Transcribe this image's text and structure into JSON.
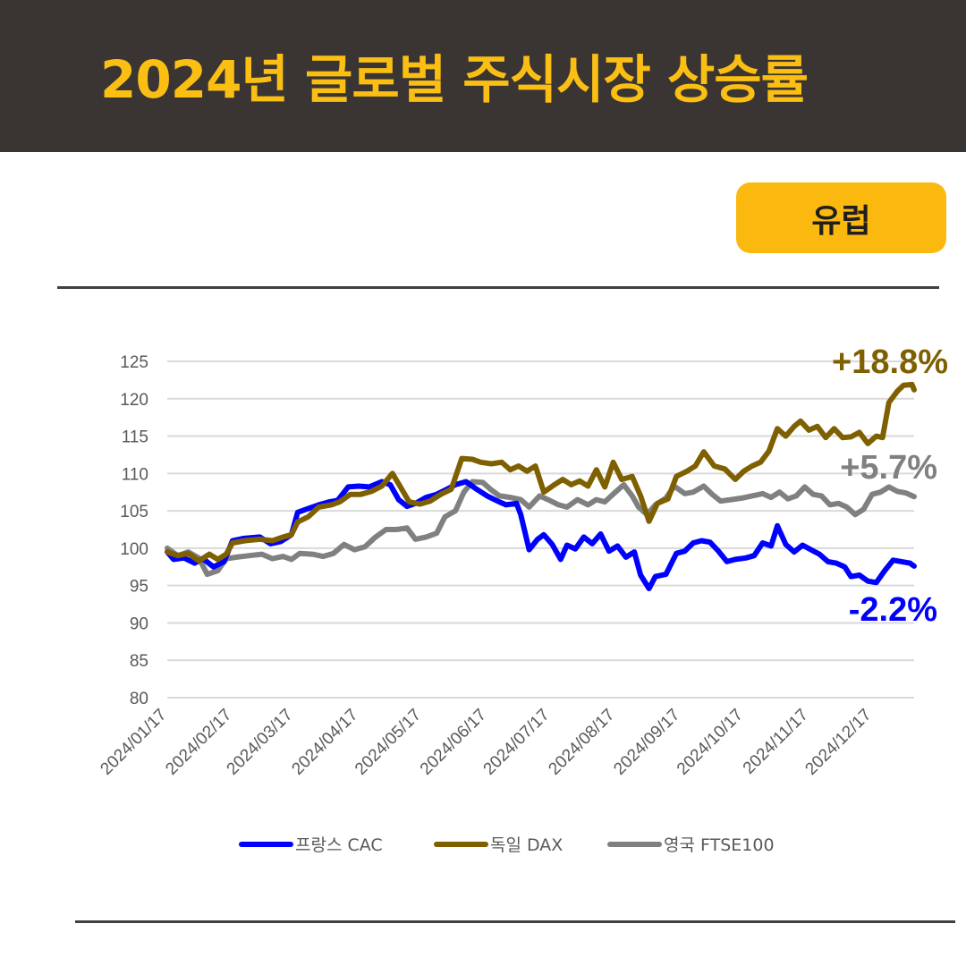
{
  "header": {
    "title": "2024년 글로벌 주식시장 상승률"
  },
  "badge": {
    "region": "유럽"
  },
  "chart_data": {
    "type": "line",
    "title": "2024년 글로벌 주식시장 상승률",
    "ylim": [
      80,
      125
    ],
    "yticks": [
      125,
      120,
      115,
      110,
      105,
      100,
      95,
      90,
      85,
      80
    ],
    "xticks": [
      "2024/01/17",
      "2024/02/17",
      "2024/03/17",
      "2024/04/17",
      "2024/05/17",
      "2024/06/17",
      "2024/07/17",
      "2024/08/17",
      "2024/09/17",
      "2024/10/17",
      "2024/11/17",
      "2024/12/17"
    ],
    "grid": true,
    "legend_position": "bottom",
    "series": [
      {
        "name": "프랑스 CAC",
        "color": "#0000ff",
        "end_label": "-2.2%",
        "points": [
          [
            "2024-01-17",
            99.5
          ],
          [
            "2024-01-20",
            98.5
          ],
          [
            "2024-01-25",
            98.7
          ],
          [
            "2024-01-30",
            98.0
          ],
          [
            "2024-02-03",
            98.6
          ],
          [
            "2024-02-08",
            97.5
          ],
          [
            "2024-02-13",
            98.2
          ],
          [
            "2024-02-17",
            101.0
          ],
          [
            "2024-02-22",
            101.3
          ],
          [
            "2024-03-01",
            101.5
          ],
          [
            "2024-03-06",
            100.6
          ],
          [
            "2024-03-11",
            100.9
          ],
          [
            "2024-03-16",
            101.8
          ],
          [
            "2024-03-19",
            104.8
          ],
          [
            "2024-03-24",
            105.3
          ],
          [
            "2024-03-29",
            105.8
          ],
          [
            "2024-04-03",
            106.2
          ],
          [
            "2024-04-07",
            106.4
          ],
          [
            "2024-04-12",
            108.2
          ],
          [
            "2024-04-17",
            108.3
          ],
          [
            "2024-04-22",
            108.2
          ],
          [
            "2024-04-28",
            108.9
          ],
          [
            "2024-05-02",
            108.5
          ],
          [
            "2024-05-06",
            106.5
          ],
          [
            "2024-05-10",
            105.6
          ],
          [
            "2024-05-14",
            106.0
          ],
          [
            "2024-05-19",
            106.8
          ],
          [
            "2024-05-24",
            107.2
          ],
          [
            "2024-05-29",
            107.9
          ],
          [
            "2024-06-02",
            108.5
          ],
          [
            "2024-06-07",
            108.9
          ],
          [
            "2024-06-12",
            107.9
          ],
          [
            "2024-06-17",
            107.0
          ],
          [
            "2024-06-22",
            106.3
          ],
          [
            "2024-06-26",
            105.8
          ],
          [
            "2024-07-01",
            106.0
          ],
          [
            "2024-07-03",
            104.5
          ],
          [
            "2024-07-07",
            99.8
          ],
          [
            "2024-07-11",
            101.2
          ],
          [
            "2024-07-14",
            101.8
          ],
          [
            "2024-07-18",
            100.5
          ],
          [
            "2024-07-22",
            98.5
          ],
          [
            "2024-07-25",
            100.4
          ],
          [
            "2024-07-29",
            99.9
          ],
          [
            "2024-08-02",
            101.5
          ],
          [
            "2024-08-06",
            100.6
          ],
          [
            "2024-08-10",
            101.9
          ],
          [
            "2024-08-14",
            99.6
          ],
          [
            "2024-08-18",
            100.3
          ],
          [
            "2024-08-22",
            98.8
          ],
          [
            "2024-08-26",
            99.5
          ],
          [
            "2024-08-29",
            96.4
          ],
          [
            "2024-09-02",
            94.6
          ],
          [
            "2024-09-05",
            96.2
          ],
          [
            "2024-09-10",
            96.5
          ],
          [
            "2024-09-15",
            99.3
          ],
          [
            "2024-09-19",
            99.6
          ],
          [
            "2024-09-23",
            100.7
          ],
          [
            "2024-09-27",
            101.0
          ],
          [
            "2024-10-01",
            100.8
          ],
          [
            "2024-10-05",
            99.6
          ],
          [
            "2024-10-09",
            98.2
          ],
          [
            "2024-10-13",
            98.5
          ],
          [
            "2024-10-18",
            98.7
          ],
          [
            "2024-10-22",
            99.0
          ],
          [
            "2024-10-26",
            100.7
          ],
          [
            "2024-10-30",
            100.3
          ],
          [
            "2024-11-02",
            103.0
          ],
          [
            "2024-11-06",
            100.5
          ],
          [
            "2024-11-10",
            99.5
          ],
          [
            "2024-11-14",
            100.4
          ],
          [
            "2024-11-18",
            99.8
          ],
          [
            "2024-11-22",
            99.2
          ],
          [
            "2024-11-26",
            98.2
          ],
          [
            "2024-11-30",
            98.0
          ],
          [
            "2024-12-04",
            97.5
          ],
          [
            "2024-12-07",
            96.2
          ],
          [
            "2024-12-11",
            96.4
          ],
          [
            "2024-12-15",
            95.6
          ],
          [
            "2024-12-19",
            95.4
          ],
          [
            "2024-12-23",
            97.0
          ],
          [
            "2024-12-27",
            98.4
          ],
          [
            "2024-12-31",
            98.2
          ],
          [
            "2025-01-04",
            98.0
          ],
          [
            "2025-01-06",
            97.6
          ]
        ]
      },
      {
        "name": "독일 DAX",
        "color": "#7f6000",
        "end_label": "+18.8%",
        "points": [
          [
            "2024-01-17",
            99.5
          ],
          [
            "2024-01-22",
            99.0
          ],
          [
            "2024-01-27",
            99.3
          ],
          [
            "2024-02-01",
            98.3
          ],
          [
            "2024-02-06",
            99.2
          ],
          [
            "2024-02-10",
            98.5
          ],
          [
            "2024-02-14",
            99.2
          ],
          [
            "2024-02-17",
            100.7
          ],
          [
            "2024-02-23",
            101.0
          ],
          [
            "2024-03-01",
            101.2
          ],
          [
            "2024-03-07",
            101.0
          ],
          [
            "2024-03-12",
            101.5
          ],
          [
            "2024-03-16",
            101.8
          ],
          [
            "2024-03-19",
            103.5
          ],
          [
            "2024-03-24",
            104.2
          ],
          [
            "2024-03-29",
            105.5
          ],
          [
            "2024-04-04",
            105.8
          ],
          [
            "2024-04-08",
            106.2
          ],
          [
            "2024-04-13",
            107.2
          ],
          [
            "2024-04-18",
            107.2
          ],
          [
            "2024-04-23",
            107.6
          ],
          [
            "2024-04-28",
            108.3
          ],
          [
            "2024-05-03",
            110.0
          ],
          [
            "2024-05-06",
            108.6
          ],
          [
            "2024-05-11",
            106.2
          ],
          [
            "2024-05-16",
            105.9
          ],
          [
            "2024-05-21",
            106.3
          ],
          [
            "2024-05-26",
            107.2
          ],
          [
            "2024-05-31",
            107.9
          ],
          [
            "2024-06-05",
            112.0
          ],
          [
            "2024-06-10",
            111.9
          ],
          [
            "2024-06-14",
            111.5
          ],
          [
            "2024-06-19",
            111.3
          ],
          [
            "2024-06-24",
            111.5
          ],
          [
            "2024-06-28",
            110.5
          ],
          [
            "2024-07-02",
            111.0
          ],
          [
            "2024-07-06",
            110.3
          ],
          [
            "2024-07-10",
            111.0
          ],
          [
            "2024-07-14",
            107.5
          ],
          [
            "2024-07-19",
            108.5
          ],
          [
            "2024-07-23",
            109.2
          ],
          [
            "2024-07-27",
            108.5
          ],
          [
            "2024-07-31",
            109.0
          ],
          [
            "2024-08-04",
            108.3
          ],
          [
            "2024-08-08",
            110.5
          ],
          [
            "2024-08-12",
            108.2
          ],
          [
            "2024-08-16",
            111.5
          ],
          [
            "2024-08-20",
            109.2
          ],
          [
            "2024-08-25",
            109.6
          ],
          [
            "2024-08-29",
            107.0
          ],
          [
            "2024-09-02",
            103.6
          ],
          [
            "2024-09-06",
            106.0
          ],
          [
            "2024-09-11",
            106.6
          ],
          [
            "2024-09-15",
            109.6
          ],
          [
            "2024-09-20",
            110.3
          ],
          [
            "2024-09-24",
            111.0
          ],
          [
            "2024-09-28",
            112.9
          ],
          [
            "2024-10-03",
            111.0
          ],
          [
            "2024-10-08",
            110.6
          ],
          [
            "2024-10-13",
            109.2
          ],
          [
            "2024-10-17",
            110.3
          ],
          [
            "2024-10-21",
            111.0
          ],
          [
            "2024-10-25",
            111.5
          ],
          [
            "2024-10-29",
            113.0
          ],
          [
            "2024-11-02",
            116.0
          ],
          [
            "2024-11-06",
            115.0
          ],
          [
            "2024-11-10",
            116.3
          ],
          [
            "2024-11-13",
            117.0
          ],
          [
            "2024-11-17",
            115.8
          ],
          [
            "2024-11-21",
            116.3
          ],
          [
            "2024-11-25",
            114.8
          ],
          [
            "2024-11-29",
            116.0
          ],
          [
            "2024-12-03",
            114.8
          ],
          [
            "2024-12-07",
            114.9
          ],
          [
            "2024-12-11",
            115.5
          ],
          [
            "2024-12-15",
            114.0
          ],
          [
            "2024-12-19",
            115.0
          ],
          [
            "2024-12-22",
            114.8
          ],
          [
            "2024-12-25",
            119.5
          ],
          [
            "2024-12-29",
            121.0
          ],
          [
            "2025-01-01",
            121.8
          ],
          [
            "2025-01-05",
            121.9
          ],
          [
            "2025-01-06",
            121.2
          ]
        ]
      },
      {
        "name": "영국 FTSE100",
        "color": "#808080",
        "end_label": "+5.7%",
        "points": [
          [
            "2024-01-17",
            100.0
          ],
          [
            "2024-01-22",
            99.0
          ],
          [
            "2024-01-27",
            99.5
          ],
          [
            "2024-02-01",
            98.7
          ],
          [
            "2024-02-05",
            96.5
          ],
          [
            "2024-02-10",
            97.0
          ],
          [
            "2024-02-14",
            98.6
          ],
          [
            "2024-02-19",
            98.8
          ],
          [
            "2024-02-25",
            99.0
          ],
          [
            "2024-03-02",
            99.2
          ],
          [
            "2024-03-07",
            98.6
          ],
          [
            "2024-03-12",
            98.9
          ],
          [
            "2024-03-16",
            98.5
          ],
          [
            "2024-03-20",
            99.3
          ],
          [
            "2024-03-26",
            99.2
          ],
          [
            "2024-03-31",
            98.9
          ],
          [
            "2024-04-05",
            99.3
          ],
          [
            "2024-04-10",
            100.5
          ],
          [
            "2024-04-15",
            99.8
          ],
          [
            "2024-04-20",
            100.2
          ],
          [
            "2024-04-25",
            101.5
          ],
          [
            "2024-04-30",
            102.5
          ],
          [
            "2024-05-05",
            102.5
          ],
          [
            "2024-05-10",
            102.7
          ],
          [
            "2024-05-14",
            101.2
          ],
          [
            "2024-05-19",
            101.5
          ],
          [
            "2024-05-24",
            102.0
          ],
          [
            "2024-05-28",
            104.2
          ],
          [
            "2024-06-02",
            105.0
          ],
          [
            "2024-06-06",
            107.5
          ],
          [
            "2024-06-10",
            108.9
          ],
          [
            "2024-06-15",
            108.8
          ],
          [
            "2024-06-19",
            107.8
          ],
          [
            "2024-06-23",
            107.0
          ],
          [
            "2024-06-28",
            106.8
          ],
          [
            "2024-07-03",
            106.5
          ],
          [
            "2024-07-07",
            105.5
          ],
          [
            "2024-07-12",
            107.0
          ],
          [
            "2024-07-16",
            106.5
          ],
          [
            "2024-07-21",
            105.8
          ],
          [
            "2024-07-25",
            105.5
          ],
          [
            "2024-07-30",
            106.5
          ],
          [
            "2024-08-04",
            105.8
          ],
          [
            "2024-08-08",
            106.5
          ],
          [
            "2024-08-12",
            106.2
          ],
          [
            "2024-08-17",
            107.5
          ],
          [
            "2024-08-21",
            108.5
          ],
          [
            "2024-08-25",
            107.0
          ],
          [
            "2024-08-28",
            105.5
          ],
          [
            "2024-09-01",
            104.5
          ],
          [
            "2024-09-05",
            105.8
          ],
          [
            "2024-09-10",
            106.7
          ],
          [
            "2024-09-14",
            108.3
          ],
          [
            "2024-09-19",
            107.3
          ],
          [
            "2024-09-23",
            107.5
          ],
          [
            "2024-09-28",
            108.3
          ],
          [
            "2024-10-02",
            107.2
          ],
          [
            "2024-10-06",
            106.3
          ],
          [
            "2024-10-11",
            106.5
          ],
          [
            "2024-10-16",
            106.7
          ],
          [
            "2024-10-21",
            107.0
          ],
          [
            "2024-10-26",
            107.3
          ],
          [
            "2024-10-30",
            106.8
          ],
          [
            "2024-11-03",
            107.5
          ],
          [
            "2024-11-07",
            106.6
          ],
          [
            "2024-11-11",
            107.0
          ],
          [
            "2024-11-15",
            108.2
          ],
          [
            "2024-11-19",
            107.2
          ],
          [
            "2024-11-23",
            107.0
          ],
          [
            "2024-11-27",
            105.8
          ],
          [
            "2024-12-01",
            106.0
          ],
          [
            "2024-12-05",
            105.5
          ],
          [
            "2024-12-09",
            104.5
          ],
          [
            "2024-12-13",
            105.2
          ],
          [
            "2024-12-17",
            107.2
          ],
          [
            "2024-12-21",
            107.5
          ],
          [
            "2024-12-25",
            108.2
          ],
          [
            "2024-12-29",
            107.6
          ],
          [
            "2025-01-02",
            107.4
          ],
          [
            "2025-01-06",
            106.9
          ]
        ]
      }
    ]
  }
}
